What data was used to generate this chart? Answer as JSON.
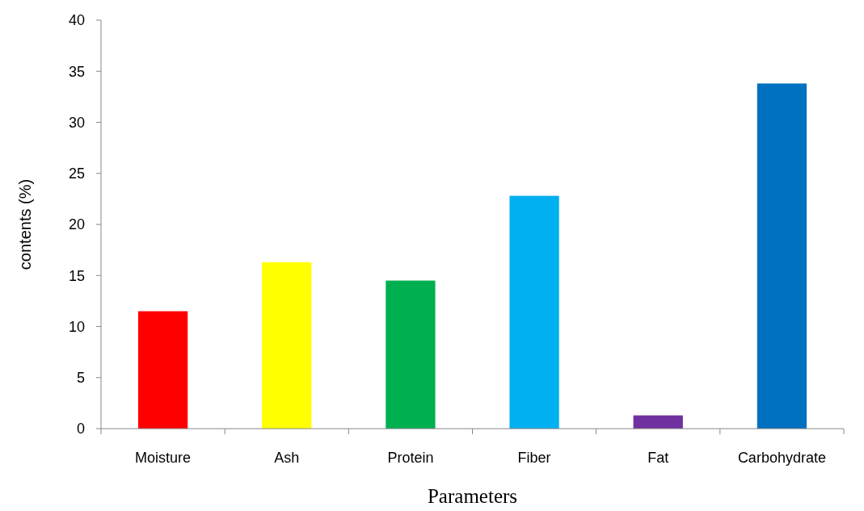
{
  "chart_data": {
    "type": "bar",
    "xlabel": "Parameters",
    "ylabel": "contents (%)",
    "categories": [
      "Moisture",
      "Ash",
      "Protein",
      "Fiber",
      "Fat",
      "Carbohydrate"
    ],
    "values": [
      11.5,
      16.3,
      14.5,
      22.8,
      1.3,
      33.8
    ],
    "colors": [
      "#ff0000",
      "#ffff00",
      "#00b050",
      "#00b0f0",
      "#7030a0",
      "#0070c0"
    ],
    "ylim": [
      0,
      40
    ],
    "yticks": [
      0,
      5,
      10,
      15,
      20,
      25,
      30,
      35,
      40
    ],
    "grid": false
  }
}
